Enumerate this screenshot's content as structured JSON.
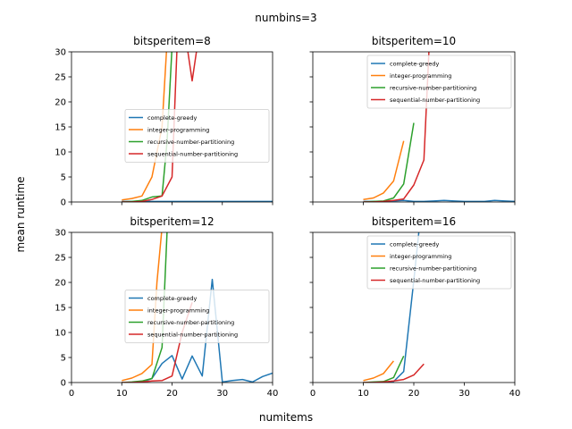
{
  "chart_data": {
    "type": "line",
    "suptitle": "numbins=3",
    "xlabel": "numitems",
    "ylabel": "mean runtime",
    "xlim": [
      0,
      40
    ],
    "ylim": [
      0,
      30
    ],
    "xticks": [
      "0",
      "10",
      "20",
      "30",
      "40"
    ],
    "yticks": [
      "0",
      "5",
      "10",
      "15",
      "20",
      "25",
      "30"
    ],
    "colors": {
      "complete-greedy": "#1f77b4",
      "integer-programming": "#ff7f0e",
      "recursive-number-partitioning": "#2ca02c",
      "sequential-number-partitioning": "#d62728"
    },
    "legend_labels": [
      "complete-greedy",
      "integer-programming",
      "recursive-number-partitioning",
      "sequential-number-partitioning"
    ],
    "panels": [
      {
        "title": "bitsperitem=8",
        "legend_position": "center-right",
        "series": [
          {
            "name": "complete-greedy",
            "x": [
              10,
              12,
              14,
              16,
              18,
              20,
              22,
              24,
              26,
              28,
              30,
              32,
              34,
              36,
              38,
              40
            ],
            "y": [
              0.1,
              0.1,
              0.1,
              0.1,
              0.1,
              0.1,
              0.1,
              0.1,
              0.1,
              0.1,
              0.1,
              0.1,
              0.1,
              0.1,
              0.1,
              0.1
            ]
          },
          {
            "name": "integer-programming",
            "x": [
              10,
              12,
              14,
              16,
              18,
              19
            ],
            "y": [
              0.4,
              0.7,
              1.2,
              5,
              15,
              32
            ]
          },
          {
            "name": "recursive-number-partitioning",
            "x": [
              10,
              12,
              14,
              16,
              18,
              19,
              20
            ],
            "y": [
              0,
              0.1,
              0.3,
              1,
              1.2,
              12,
              31
            ]
          },
          {
            "name": "sequential-number-partitioning",
            "x": [
              10,
              12,
              14,
              16,
              18,
              20,
              21,
              22,
              23,
              24,
              25,
              26
            ],
            "y": [
              0,
              0,
              0.1,
              0.5,
              1.2,
              5,
              31,
              32,
              31,
              24.2,
              31,
              32
            ]
          }
        ]
      },
      {
        "title": "bitsperitem=10",
        "legend_position": "upper-right",
        "series": [
          {
            "name": "complete-greedy",
            "x": [
              10,
              12,
              14,
              16,
              18,
              20,
              22,
              24,
              26,
              28,
              30,
              32,
              34,
              36,
              38,
              40
            ],
            "y": [
              0.1,
              0.1,
              0.1,
              0.2,
              0.3,
              0.1,
              0.1,
              0.2,
              0.3,
              0.2,
              0.1,
              0.1,
              0.1,
              0.3,
              0.2,
              0.1
            ]
          },
          {
            "name": "integer-programming",
            "x": [
              10,
              12,
              14,
              16,
              18
            ],
            "y": [
              0.5,
              0.8,
              1.8,
              4.2,
              12.2
            ]
          },
          {
            "name": "recursive-number-partitioning",
            "x": [
              10,
              12,
              14,
              16,
              18,
              20
            ],
            "y": [
              0,
              0.1,
              0.2,
              0.8,
              3.6,
              15.8
            ]
          },
          {
            "name": "sequential-number-partitioning",
            "x": [
              10,
              12,
              14,
              16,
              18,
              20,
              22,
              23
            ],
            "y": [
              0,
              0,
              0.1,
              0.3,
              0.6,
              3.4,
              8.4,
              30
            ]
          }
        ]
      },
      {
        "title": "bitsperitem=12",
        "legend_position": "center-right",
        "series": [
          {
            "name": "complete-greedy",
            "x": [
              10,
              12,
              14,
              16,
              18,
              20,
              22,
              24,
              26,
              28,
              30,
              32,
              34,
              36,
              38,
              40
            ],
            "y": [
              0,
              0,
              0.1,
              0.8,
              3.8,
              5.4,
              0.7,
              5.3,
              1.3,
              20.6,
              0.1,
              0.4,
              0.6,
              0.1,
              1.2,
              1.9
            ]
          },
          {
            "name": "integer-programming",
            "x": [
              10,
              12,
              14,
              16,
              17,
              18
            ],
            "y": [
              0.4,
              0.9,
              1.8,
              3.6,
              20,
              31
            ]
          },
          {
            "name": "recursive-number-partitioning",
            "x": [
              10,
              12,
              14,
              16,
              18,
              19,
              20
            ],
            "y": [
              0,
              0.1,
              0.3,
              0.8,
              7,
              30,
              32
            ]
          },
          {
            "name": "sequential-number-partitioning",
            "x": [
              10,
              12,
              14,
              16,
              18,
              20,
              22,
              24
            ],
            "y": [
              0,
              0,
              0.1,
              0.3,
              0.4,
              1.3,
              10,
              16
            ]
          }
        ]
      },
      {
        "title": "bitsperitem=16",
        "legend_position": "upper-right",
        "series": [
          {
            "name": "complete-greedy",
            "x": [
              10,
              12,
              14,
              16,
              18,
              20,
              21
            ],
            "y": [
              0,
              0,
              0,
              0.2,
              2.2,
              20.4,
              30
            ]
          },
          {
            "name": "integer-programming",
            "x": [
              10,
              12,
              14,
              16
            ],
            "y": [
              0.4,
              0.9,
              1.8,
              4.3
            ]
          },
          {
            "name": "recursive-number-partitioning",
            "x": [
              10,
              12,
              14,
              16,
              18
            ],
            "y": [
              0,
              0.1,
              0.2,
              1,
              5.3
            ]
          },
          {
            "name": "sequential-number-partitioning",
            "x": [
              10,
              12,
              14,
              16,
              18,
              20,
              22
            ],
            "y": [
              0,
              0,
              0.1,
              0.3,
              0.6,
              1.5,
              3.7
            ]
          }
        ]
      }
    ]
  }
}
